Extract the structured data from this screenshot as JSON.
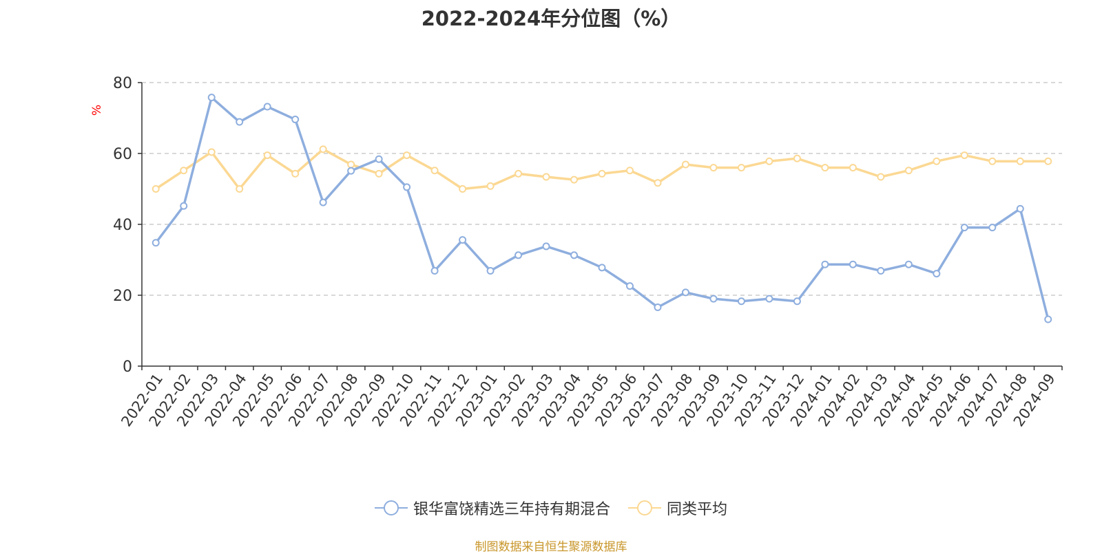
{
  "chart_data": {
    "type": "line",
    "title": "2022-2024年分位图（%）",
    "ylabel": "%",
    "xlabel": "",
    "ylim": [
      0,
      80
    ],
    "yticks": [
      0,
      20,
      40,
      60,
      80
    ],
    "grid": true,
    "legend_position": "bottom",
    "categories": [
      "2022-01",
      "2022-02",
      "2022-03",
      "2022-04",
      "2022-05",
      "2022-06",
      "2022-07",
      "2022-08",
      "2022-09",
      "2022-10",
      "2022-11",
      "2022-12",
      "2023-01",
      "2023-02",
      "2023-03",
      "2023-04",
      "2023-05",
      "2023-06",
      "2023-07",
      "2023-08",
      "2023-09",
      "2023-10",
      "2023-11",
      "2023-12",
      "2024-01",
      "2024-02",
      "2024-03",
      "2024-04",
      "2024-05",
      "2024-06",
      "2024-07",
      "2024-08",
      "2024-09"
    ],
    "series": [
      {
        "name": "银华富饶精选三年持有期混合",
        "color": "#8eaede",
        "values": [
          34.8,
          45.2,
          75.8,
          68.9,
          73.2,
          69.6,
          46.2,
          55.1,
          58.4,
          50.5,
          26.9,
          35.6,
          26.9,
          31.3,
          33.8,
          31.3,
          27.8,
          22.6,
          16.6,
          20.8,
          19.0,
          18.3,
          19.0,
          18.3,
          28.7,
          28.7,
          26.9,
          28.7,
          26.1,
          39.1,
          39.1,
          44.4,
          13.2
        ]
      },
      {
        "name": "同类平均",
        "color": "#fbd893",
        "values": [
          50.0,
          55.2,
          60.4,
          50.0,
          59.5,
          54.3,
          61.2,
          56.9,
          54.3,
          59.5,
          55.2,
          50.0,
          50.8,
          54.3,
          53.4,
          52.6,
          54.3,
          55.2,
          51.7,
          56.9,
          56.0,
          56.0,
          57.8,
          58.6,
          56.0,
          56.0,
          53.4,
          55.2,
          57.8,
          59.5,
          57.8,
          57.8,
          57.8
        ]
      }
    ]
  },
  "footer": {
    "source": "制图数据来自恒生聚源数据库",
    "source_color": "#c8962a"
  },
  "colors": {
    "axis": "#333333",
    "grid": "#cccccc",
    "ylabel": "#ff0000",
    "marker_fill": "#ffffff"
  }
}
